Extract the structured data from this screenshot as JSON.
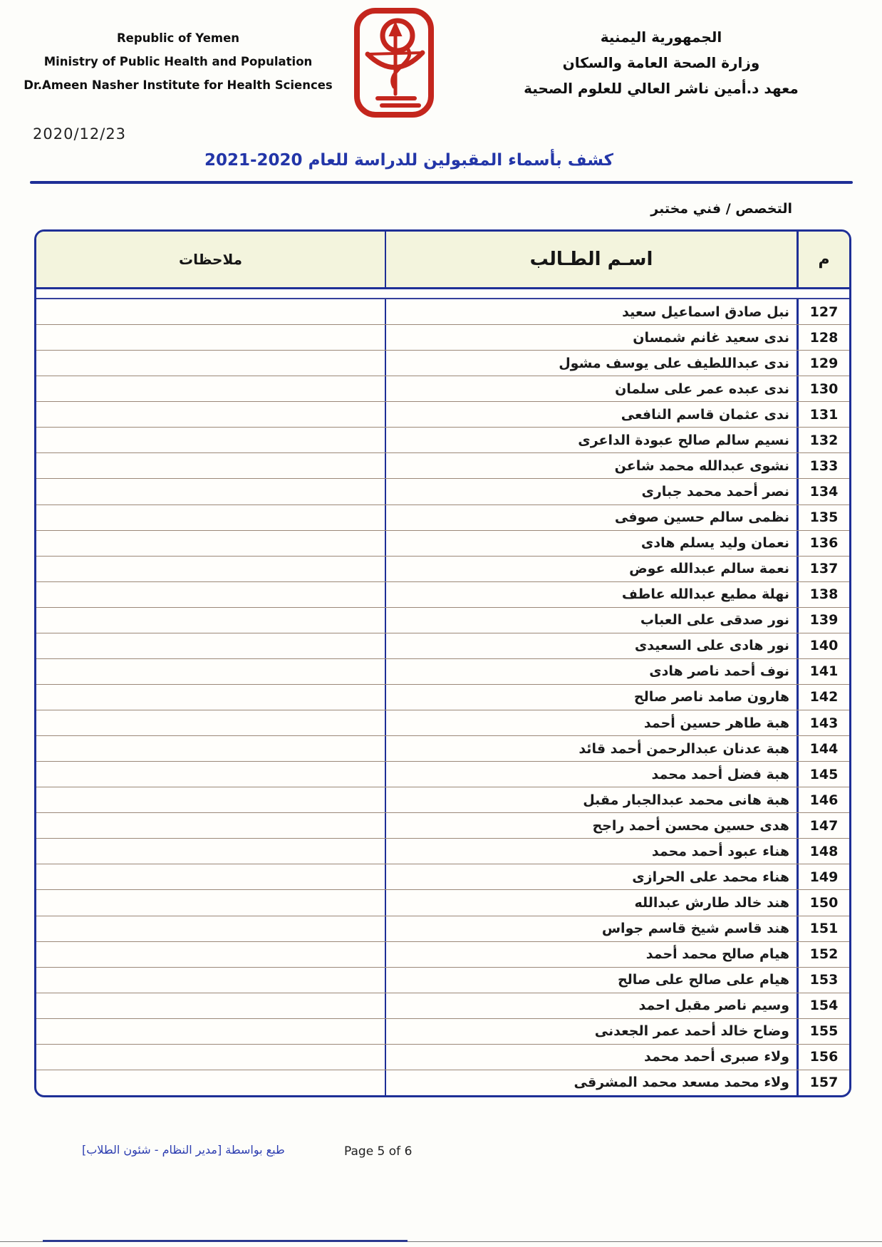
{
  "header": {
    "english": {
      "line1": "Republic of Yemen",
      "line2": "Ministry of Public Health and Population",
      "line3": "Dr.Ameen Nasher Institute for Health Sciences"
    },
    "arabic": {
      "line1": "الجمهورية اليمنية",
      "line2": "وزارة الصحة العامة والسكان",
      "line3": "معهد د.أمين ناشر العالي للعلوم الصحية"
    },
    "logo_icon": "health-institute-emblem-icon",
    "logo_color": "#c4261d"
  },
  "date": "2020/12/23",
  "title": "كشف بأسماء المقبولين للدراسة للعام 2020-2021",
  "specialty": "التخصص / فني مختبر",
  "table": {
    "headers": {
      "number": "م",
      "name": "اسـم الطـالب",
      "notes": "ملاحظات"
    },
    "rows": [
      {
        "number": "127",
        "name": "نبل صادق اسماعيل سعيد",
        "notes": ""
      },
      {
        "number": "128",
        "name": "ندى سعيد غانم شمسان",
        "notes": ""
      },
      {
        "number": "129",
        "name": "ندى عبداللطيف على يوسف مشول",
        "notes": ""
      },
      {
        "number": "130",
        "name": "ندى عبده عمر على سلمان",
        "notes": ""
      },
      {
        "number": "131",
        "name": "ندى عثمان قاسم النافعى",
        "notes": ""
      },
      {
        "number": "132",
        "name": "نسيم سالم صالح عبودة الداعرى",
        "notes": ""
      },
      {
        "number": "133",
        "name": "نشوى عبدالله محمد شاعن",
        "notes": ""
      },
      {
        "number": "134",
        "name": "نصر أحمد محمد جبارى",
        "notes": ""
      },
      {
        "number": "135",
        "name": "نظمى سالم حسين صوفى",
        "notes": ""
      },
      {
        "number": "136",
        "name": "نعمان وليد يسلم هادى",
        "notes": ""
      },
      {
        "number": "137",
        "name": "نعمة سالم عبدالله عوض",
        "notes": ""
      },
      {
        "number": "138",
        "name": "نهلة مطيع عبدالله عاطف",
        "notes": ""
      },
      {
        "number": "139",
        "name": "نور صدقى على العباب",
        "notes": ""
      },
      {
        "number": "140",
        "name": "نور هادى على السعيدى",
        "notes": ""
      },
      {
        "number": "141",
        "name": "نوف أحمد ناصر هادى",
        "notes": ""
      },
      {
        "number": "142",
        "name": "هارون صامد ناصر صالح",
        "notes": ""
      },
      {
        "number": "143",
        "name": "هبة طاهر حسين أحمد",
        "notes": ""
      },
      {
        "number": "144",
        "name": "هبة عدنان عبدالرحمن أحمد قائد",
        "notes": ""
      },
      {
        "number": "145",
        "name": "هبة فضل أحمد محمد",
        "notes": ""
      },
      {
        "number": "146",
        "name": "هبة هانى محمد عبدالجبار مقبل",
        "notes": ""
      },
      {
        "number": "147",
        "name": "هدى حسين محسن أحمد راجح",
        "notes": ""
      },
      {
        "number": "148",
        "name": "هناء عبود أحمد محمد",
        "notes": ""
      },
      {
        "number": "149",
        "name": "هناء محمد على الحرازى",
        "notes": ""
      },
      {
        "number": "150",
        "name": "هند خالد طارش عبدالله",
        "notes": ""
      },
      {
        "number": "151",
        "name": "هند قاسم شيخ قاسم جواس",
        "notes": ""
      },
      {
        "number": "152",
        "name": "هيام صالح محمد أحمد",
        "notes": ""
      },
      {
        "number": "153",
        "name": "هيام على صالح على صالح",
        "notes": ""
      },
      {
        "number": "154",
        "name": "وسيم ناصر مقبل احمد",
        "notes": ""
      },
      {
        "number": "155",
        "name": "وضاح خالد أحمد عمر الجعدنى",
        "notes": ""
      },
      {
        "number": "156",
        "name": "ولاء صبرى أحمد محمد",
        "notes": ""
      },
      {
        "number": "157",
        "name": "ولاء محمد مسعد محمد المشرقى",
        "notes": ""
      }
    ]
  },
  "footer": {
    "printed_by": "طبع بواسطة [مدير النظام - شئون الطلاب]",
    "page": "Page 5 of 6"
  },
  "colors": {
    "border_blue": "#1e2f96",
    "title_blue": "#2336a8",
    "header_cream": "#f3f4dd",
    "logo_red": "#c4261d",
    "footer_blue": "#2c3db0"
  }
}
